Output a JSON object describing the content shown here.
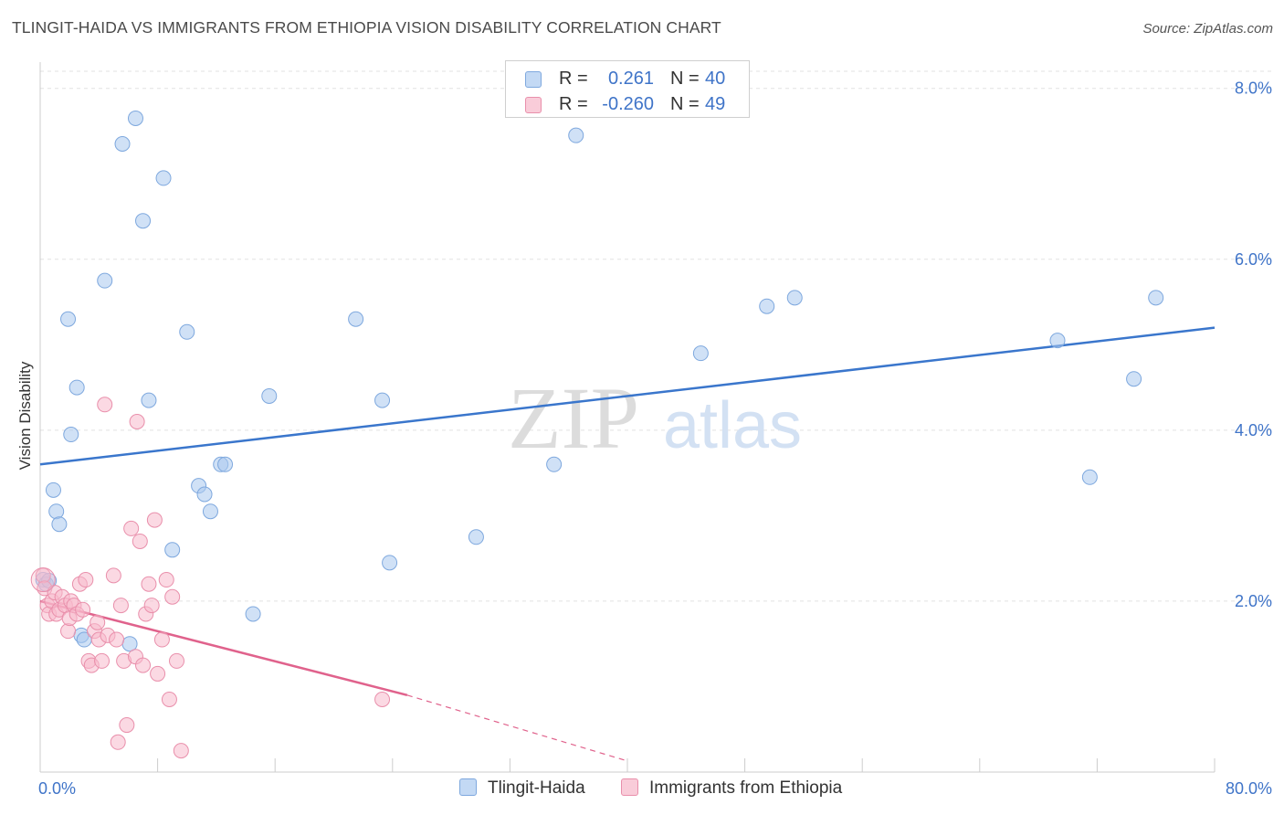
{
  "chart_data": {
    "type": "scatter",
    "title": "TLINGIT-HAIDA VS IMMIGRANTS FROM ETHIOPIA VISION DISABILITY CORRELATION CHART",
    "source": "Source: ZipAtlas.com",
    "ylabel": "Vision Disability",
    "xlabel": "",
    "xlim": [
      0,
      80
    ],
    "ylim": [
      0,
      8.2
    ],
    "x_tick_labels": [
      "0.0%",
      "80.0%"
    ],
    "y_ticks": [
      2,
      4,
      6,
      8
    ],
    "y_tick_labels": [
      "2.0%",
      "4.0%",
      "6.0%",
      "8.0%"
    ],
    "grid": true,
    "legend_position": "top-center",
    "watermark": "ZIPatlas",
    "legend": {
      "r_label": "R =",
      "n_label": "N =",
      "rows": [
        {
          "r": "0.261",
          "n": "40"
        },
        {
          "r": "-0.260",
          "n": "49"
        }
      ]
    },
    "series": [
      {
        "name": "Tlingit-Haida",
        "color": "#a9c8ee",
        "edge": "#7ea8de",
        "line_color": "#3a76cc",
        "trend": {
          "x": [
            0,
            80
          ],
          "y": [
            3.6,
            5.2
          ]
        },
        "points": [
          [
            0.2,
            2.25
          ],
          [
            0.4,
            2.2
          ],
          [
            0.6,
            2.24
          ],
          [
            0.9,
            3.3
          ],
          [
            1.1,
            3.05
          ],
          [
            1.3,
            2.9
          ],
          [
            1.9,
            5.3
          ],
          [
            2.1,
            3.95
          ],
          [
            2.5,
            4.5
          ],
          [
            2.8,
            1.6
          ],
          [
            3.0,
            1.55
          ],
          [
            4.4,
            5.75
          ],
          [
            5.6,
            7.35
          ],
          [
            6.1,
            1.5
          ],
          [
            6.5,
            7.65
          ],
          [
            7.0,
            6.45
          ],
          [
            7.4,
            4.35
          ],
          [
            8.4,
            6.95
          ],
          [
            9.0,
            2.6
          ],
          [
            10.0,
            5.15
          ],
          [
            10.8,
            3.35
          ],
          [
            11.2,
            3.25
          ],
          [
            11.6,
            3.05
          ],
          [
            12.3,
            3.6
          ],
          [
            12.6,
            3.6
          ],
          [
            14.5,
            1.85
          ],
          [
            15.6,
            4.4
          ],
          [
            21.5,
            5.3
          ],
          [
            23.3,
            4.35
          ],
          [
            23.8,
            2.45
          ],
          [
            29.7,
            2.75
          ],
          [
            35.0,
            3.6
          ],
          [
            36.5,
            7.45
          ],
          [
            45.0,
            4.9
          ],
          [
            49.5,
            5.45
          ],
          [
            51.4,
            5.55
          ],
          [
            69.3,
            5.05
          ],
          [
            71.5,
            3.45
          ],
          [
            74.5,
            4.6
          ],
          [
            76.0,
            5.55
          ]
        ]
      },
      {
        "name": "Immigrants from Ethiopia",
        "color": "#f7b9cc",
        "edge": "#e98fab",
        "line_color": "#e0628c",
        "trend": {
          "x": [
            0,
            25
          ],
          "y": [
            2.0,
            0.9
          ]
        },
        "trend_dashed": {
          "x": [
            25,
            40
          ],
          "y": [
            0.9,
            0.13
          ]
        },
        "points": [
          [
            0.2,
            2.3
          ],
          [
            0.3,
            2.15
          ],
          [
            0.5,
            1.95
          ],
          [
            0.6,
            1.85
          ],
          [
            0.8,
            2.0
          ],
          [
            1.0,
            2.1
          ],
          [
            1.1,
            1.85
          ],
          [
            1.3,
            1.9
          ],
          [
            1.5,
            2.05
          ],
          [
            1.7,
            1.95
          ],
          [
            1.9,
            1.65
          ],
          [
            2.0,
            1.8
          ],
          [
            2.1,
            2.0
          ],
          [
            2.3,
            1.95
          ],
          [
            2.5,
            1.85
          ],
          [
            2.7,
            2.2
          ],
          [
            2.9,
            1.9
          ],
          [
            3.1,
            2.25
          ],
          [
            3.3,
            1.3
          ],
          [
            3.5,
            1.25
          ],
          [
            3.7,
            1.65
          ],
          [
            3.9,
            1.75
          ],
          [
            4.0,
            1.55
          ],
          [
            4.2,
            1.3
          ],
          [
            4.4,
            4.3
          ],
          [
            4.6,
            1.6
          ],
          [
            5.0,
            2.3
          ],
          [
            5.2,
            1.55
          ],
          [
            5.3,
            0.35
          ],
          [
            5.5,
            1.95
          ],
          [
            5.7,
            1.3
          ],
          [
            5.9,
            0.55
          ],
          [
            6.2,
            2.85
          ],
          [
            6.5,
            1.35
          ],
          [
            6.6,
            4.1
          ],
          [
            6.8,
            2.7
          ],
          [
            7.0,
            1.25
          ],
          [
            7.2,
            1.85
          ],
          [
            7.4,
            2.2
          ],
          [
            7.6,
            1.95
          ],
          [
            7.8,
            2.95
          ],
          [
            8.0,
            1.15
          ],
          [
            8.3,
            1.55
          ],
          [
            8.6,
            2.25
          ],
          [
            8.8,
            0.85
          ],
          [
            9.0,
            2.05
          ],
          [
            9.3,
            1.3
          ],
          [
            9.6,
            0.25
          ],
          [
            23.3,
            0.85
          ]
        ]
      }
    ]
  }
}
